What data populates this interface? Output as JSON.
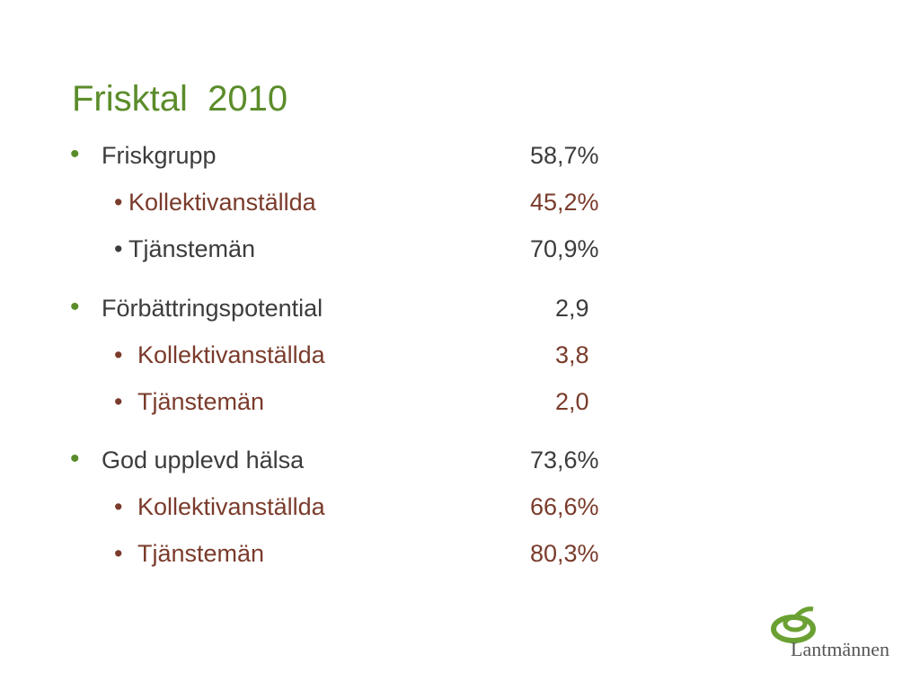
{
  "title": "Frisktal  2010",
  "groups": [
    {
      "label": "Friskgrupp",
      "value": "58,7%",
      "items": [
        {
          "label": "Kollektivanställda",
          "value": "45,2%"
        },
        {
          "label": "Tjänstemän",
          "value": "70,9%"
        }
      ]
    },
    {
      "label": "Förbättringspotential",
      "value": "2,9",
      "items": [
        {
          "label": "Kollektivanställda",
          "value": "3,8"
        },
        {
          "label": "Tjänstemän",
          "value": "2,0"
        }
      ]
    },
    {
      "label": "God upplevd hälsa",
      "value": "73,6%",
      "items": [
        {
          "label": "Kollektivanställda",
          "value": "66,6%"
        },
        {
          "label": "Tjänstemän",
          "value": "80,3%"
        }
      ]
    }
  ],
  "logo": "Lantmännen"
}
